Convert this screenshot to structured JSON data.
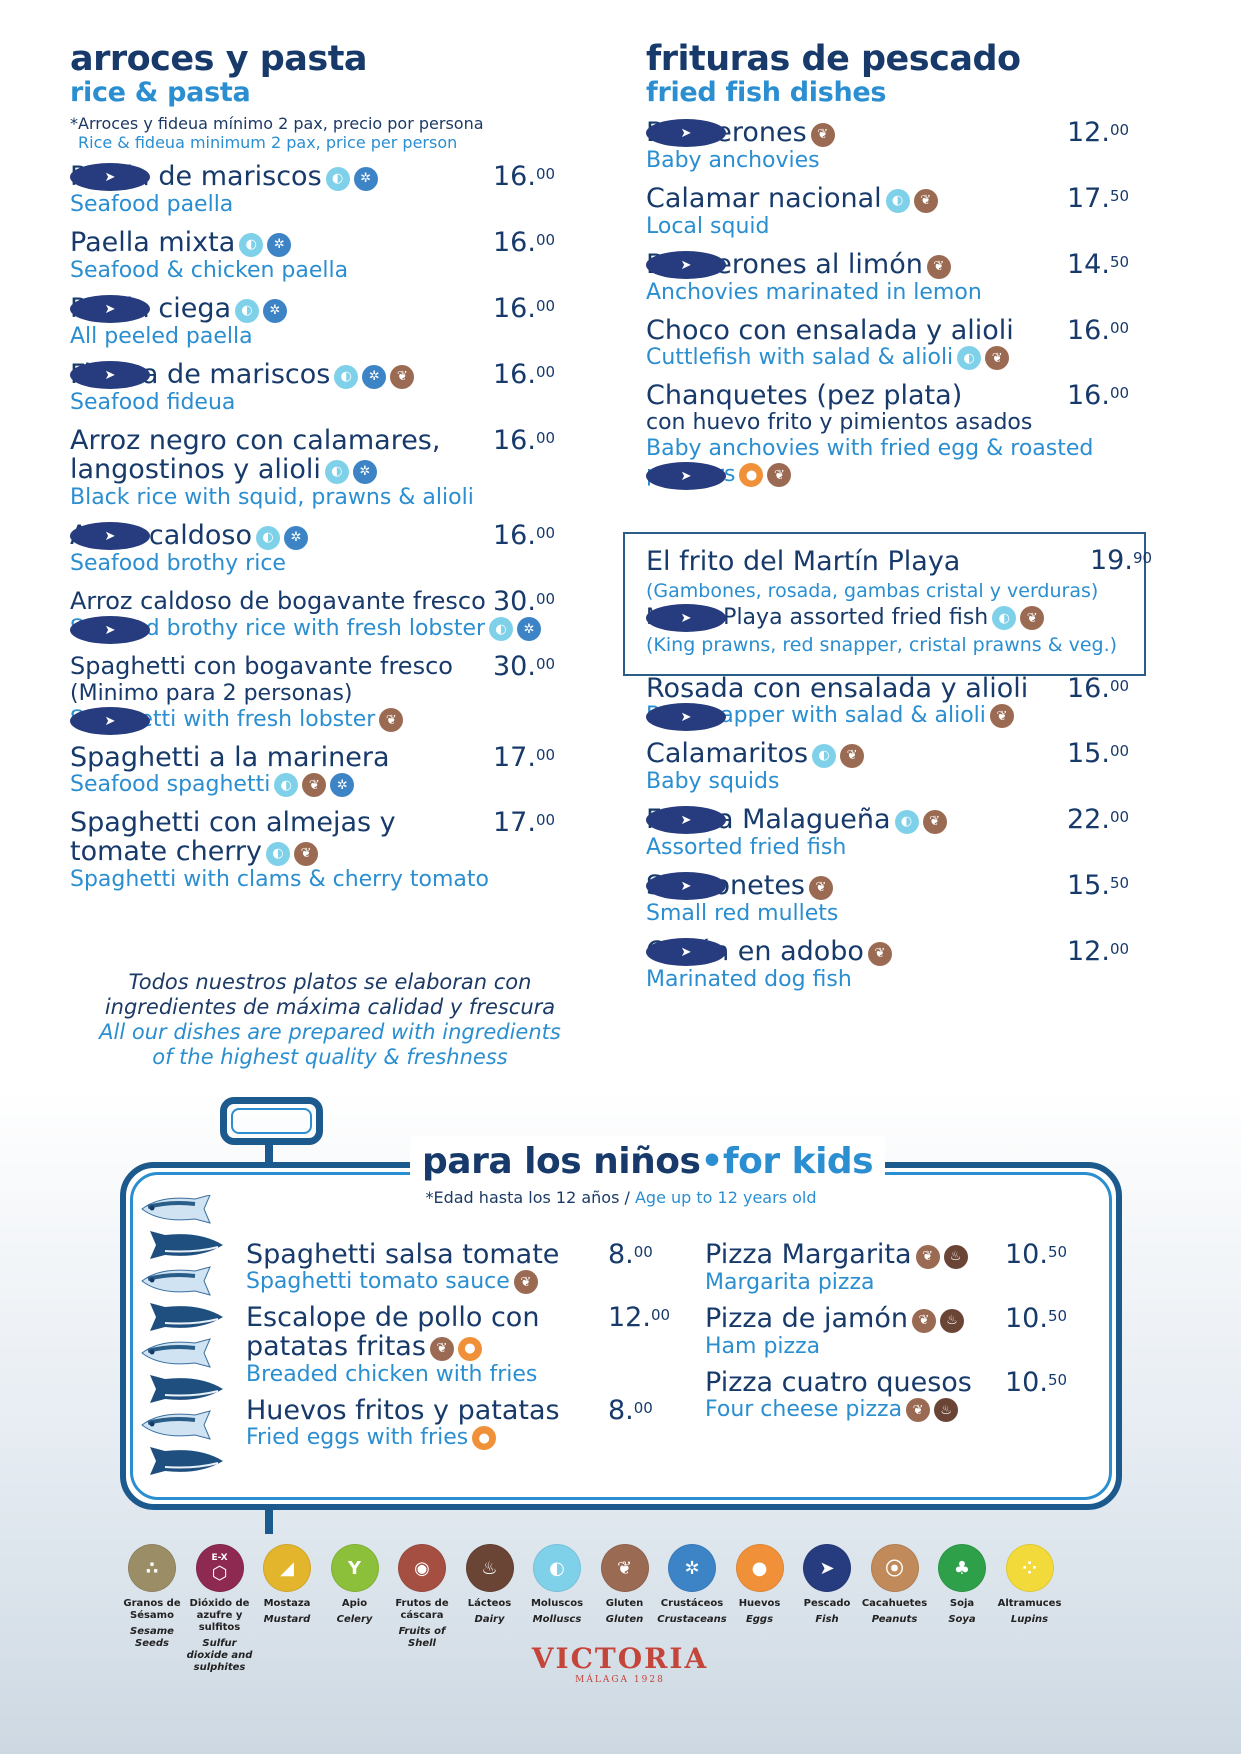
{
  "left_section": {
    "title_es": "arroces y pasta",
    "title_en": "rice & pasta",
    "note_es": "*Arroces y fideua mínimo 2 pax, precio por persona",
    "note_en": "Rice & fideua minimum 2 pax, price per person",
    "items": [
      {
        "name": "Paella de mariscos",
        "en": "Seafood paella",
        "price_int": "16.",
        "price_dec": "00",
        "allergens": [
          "molluscs",
          "crustaceans",
          "fish"
        ]
      },
      {
        "name": "Paella mixta",
        "en": "Seafood & chicken paella",
        "price_int": "16.",
        "price_dec": "00",
        "allergens": [
          "molluscs",
          "crustaceans"
        ]
      },
      {
        "name": "Paella ciega",
        "en": "All peeled paella",
        "price_int": "16.",
        "price_dec": "00",
        "allergens": [
          "molluscs",
          "crustaceans",
          "fish"
        ]
      },
      {
        "name": "Fideua de mariscos",
        "en": "Seafood fideua",
        "price_int": "16.",
        "price_dec": "00",
        "allergens": [
          "molluscs",
          "crustaceans",
          "fish",
          "gluten"
        ]
      },
      {
        "name": "Arroz negro con calamares,",
        "name2": "langostinos y alioli",
        "en": "Black rice with squid, prawns & alioli",
        "price_int": "16.",
        "price_dec": "00",
        "allergens": [
          "molluscs",
          "crustaceans"
        ]
      },
      {
        "name": "Arroz caldoso",
        "en": "Seafood brothy rice",
        "price_int": "16.",
        "price_dec": "00",
        "allergens": [
          "molluscs",
          "crustaceans",
          "fish"
        ]
      },
      {
        "name": "Arroz caldoso de bogavante fresco",
        "en": "Seafood brothy rice with fresh lobster",
        "price_int": "30.",
        "price_dec": "00",
        "allergens": [
          "molluscs",
          "fish",
          "crustaceans"
        ]
      },
      {
        "name": "Spaghetti con bogavante fresco",
        "sub_es": "(Minimo para 2 personas)",
        "en": "Spaghetti with fresh lobster",
        "price_int": "30.",
        "price_dec": "00",
        "allergens": [
          "gluten",
          "fish"
        ]
      },
      {
        "name": "Spaghetti a la marinera",
        "en": "Seafood spaghetti",
        "price_int": "17.",
        "price_dec": "00",
        "allergens": [
          "molluscs",
          "gluten",
          "crustaceans"
        ]
      },
      {
        "name": "Spaghetti con almejas y",
        "name2": "tomate cherry",
        "en": "Spaghetti with clams & cherry tomato",
        "price_int": "17.",
        "price_dec": "00",
        "allergens": [
          "molluscs",
          "gluten"
        ]
      }
    ]
  },
  "quality": {
    "es_1": "Todos nuestros platos se elaboran con",
    "es_2": "ingredientes de máxima calidad y frescura",
    "en_1": "All our dishes are prepared with ingredients",
    "en_2": "of the highest quality & freshness"
  },
  "right_section": {
    "title_es": "frituras de pescado",
    "title_en": "fried fish dishes",
    "items_top": [
      {
        "name": "Boquerones",
        "en": "Baby anchovies",
        "price_int": "12.",
        "price_dec": "00",
        "allergens": [
          "fish",
          "gluten"
        ]
      },
      {
        "name": "Calamar nacional",
        "en": "Local squid",
        "price_int": "17.",
        "price_dec": "50",
        "allergens": [
          "molluscs",
          "gluten"
        ]
      },
      {
        "name": "Boquerones al limón",
        "en": "Anchovies marinated in lemon",
        "price_int": "14.",
        "price_dec": "50",
        "allergens": [
          "fish",
          "gluten"
        ]
      },
      {
        "name": "Choco con ensalada y alioli",
        "en": "Cuttlefish with salad & alioli",
        "price_int": "16.",
        "price_dec": "00",
        "allergens": [
          "molluscs",
          "gluten"
        ]
      },
      {
        "name": "Chanquetes (pez plata)",
        "sub_es": "con huevo frito y pimientos asados",
        "en": "Baby anchovies with fried egg & roasted",
        "en2": "peppers",
        "price_int": "16.",
        "price_dec": "00",
        "allergens": [
          "eggs",
          "fish",
          "gluten"
        ]
      }
    ],
    "featured": {
      "name": "El frito del Martín Playa",
      "sub_es": "(Gambones, rosada, gambas cristal y verduras)",
      "name_en": "Martín Playa assorted fried fish",
      "sub_en": "(King prawns, red snapper, cristal prawns & veg.)",
      "price_int": "19.",
      "price_dec": "90",
      "allergens": [
        "fish",
        "molluscs",
        "gluten"
      ]
    },
    "items_bottom": [
      {
        "name": "Rosada con ensalada y alioli",
        "en": "Red snapper with salad & alioli",
        "price_int": "16.",
        "price_dec": "00",
        "allergens": [
          "fish",
          "gluten"
        ]
      },
      {
        "name": "Calamaritos",
        "en": "Baby squids",
        "price_int": "15.",
        "price_dec": "00",
        "allergens": [
          "molluscs",
          "gluten"
        ]
      },
      {
        "name": "Fritura Malagueña",
        "en": "Assorted fried fish",
        "price_int": "22.",
        "price_dec": "00",
        "allergens": [
          "fish",
          "molluscs",
          "gluten"
        ]
      },
      {
        "name": "Salmonetes",
        "en": "Small red mullets",
        "price_int": "15.",
        "price_dec": "50",
        "allergens": [
          "fish",
          "gluten"
        ]
      },
      {
        "name": "Cazón en adobo",
        "en": "Marinated dog fish",
        "price_int": "12.",
        "price_dec": "00",
        "allergens": [
          "fish",
          "gluten"
        ]
      }
    ]
  },
  "kids": {
    "title_es": "para los niños",
    "title_sep": "•",
    "title_en": "for kids",
    "note_es": "*Edad hasta los 12 años / ",
    "note_en": "Age up to 12 years old",
    "left": [
      {
        "name": "Spaghetti salsa tomate",
        "en": "Spaghetti tomato sauce",
        "price_int": "8.",
        "price_dec": "00",
        "allergens": [
          "gluten"
        ],
        "en_icons": true
      },
      {
        "name": "Escalope de pollo con",
        "name2": "patatas fritas",
        "en": "Breaded chicken with fries",
        "price_int": "12.",
        "price_dec": "00",
        "allergens": [
          "gluten",
          "eggs"
        ]
      },
      {
        "name": "Huevos fritos y patatas",
        "en": "Fried eggs with fries",
        "price_int": "8.",
        "price_dec": "00",
        "allergens": [
          "eggs"
        ],
        "en_icons": true
      }
    ],
    "right": [
      {
        "name": "Pizza Margarita",
        "en": "Margarita pizza",
        "price_int": "10.",
        "price_dec": "50",
        "allergens": [
          "gluten",
          "dairy"
        ]
      },
      {
        "name": "Pizza de jamón",
        "en": "Ham pizza",
        "price_int": "10.",
        "price_dec": "50",
        "allergens": [
          "gluten",
          "dairy"
        ]
      },
      {
        "name": "Pizza cuatro quesos",
        "en": "Four cheese pizza",
        "price_int": "10.",
        "price_dec": "50",
        "allergens": [
          "gluten",
          "dairy"
        ],
        "en_icons": true
      }
    ]
  },
  "allergen_legend": [
    {
      "es": "Granos de Sésamo",
      "en": "Sesame Seeds",
      "color": "#9b8e66",
      "icon": "sesame-icon"
    },
    {
      "es": "Dióxido de azufre y sulfitos",
      "en": "Sulfur dioxide and sulphites",
      "color": "#8e2a52",
      "icon": "sulphites-icon",
      "badge": "E-X"
    },
    {
      "es": "Mostaza",
      "en": "Mustard",
      "color": "#e2b52c",
      "icon": "mustard-icon"
    },
    {
      "es": "Apio",
      "en": "Celery",
      "color": "#8cbf3a",
      "icon": "celery-icon"
    },
    {
      "es": "Frutos de cáscara",
      "en": "Fruits of Shell",
      "color": "#a54f43",
      "icon": "nuts-icon"
    },
    {
      "es": "Lácteos",
      "en": "Dairy",
      "color": "#6a4536",
      "icon": "dairy-icon"
    },
    {
      "es": "Moluscos",
      "en": "Molluscs",
      "color": "#7fd1ea",
      "icon": "molluscs-icon"
    },
    {
      "es": "Gluten",
      "en": "Gluten",
      "color": "#9a6a52",
      "icon": "gluten-icon"
    },
    {
      "es": "Crustáceos",
      "en": "Crustaceans",
      "color": "#3d84c6",
      "icon": "crustaceans-icon"
    },
    {
      "es": "Huevos",
      "en": "Eggs",
      "color": "#f0913a",
      "icon": "eggs-icon"
    },
    {
      "es": "Pescado",
      "en": "Fish",
      "color": "#273c7e",
      "icon": "fish-icon"
    },
    {
      "es": "Cacahuetes",
      "en": "Peanuts",
      "color": "#c08a5a",
      "icon": "peanuts-icon"
    },
    {
      "es": "Soja",
      "en": "Soya",
      "color": "#2fa04a",
      "icon": "soya-icon"
    },
    {
      "es": "Altramuces",
      "en": "Lupins",
      "color": "#f2da3a",
      "icon": "lupins-icon"
    }
  ],
  "brand": {
    "name": "VICTORIA",
    "tagline": "MÁLAGA 1928"
  }
}
